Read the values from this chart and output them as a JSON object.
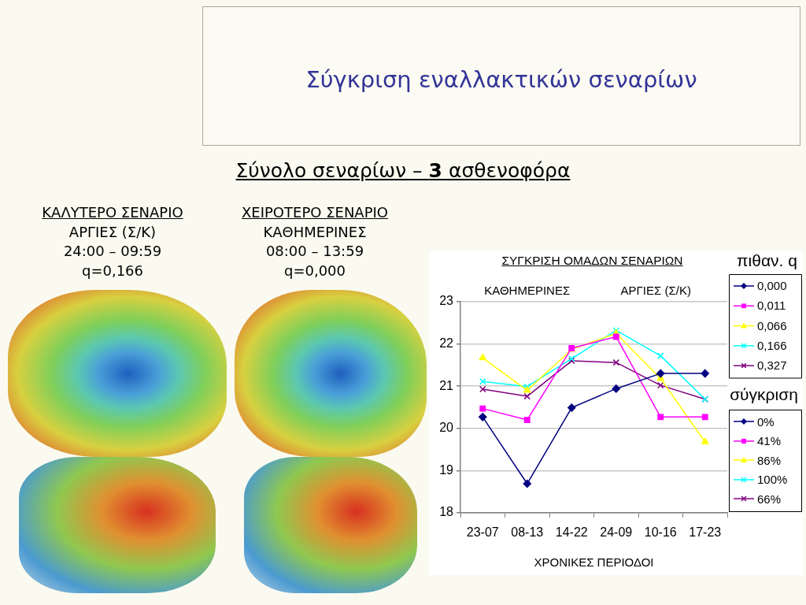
{
  "chart_data": {
    "type": "line",
    "title": "Σύγκριση εναλλακτικών σεναρίων",
    "subtitle": "Σύνολο σεναρίων – 3 ασθενοφόρα",
    "xlabel": "ΧΡΟΝΙΚΕΣ ΠΕΡΙΟΔΟΙ",
    "legend_title": "πιθαν. q",
    "categories": [
      "23-07",
      "08-13",
      "14-22",
      "24-09",
      "10-16",
      "17-23"
    ],
    "series": [
      {
        "name": "0,000",
        "color": "#000080",
        "marker": "diamond",
        "values": [
          20.27,
          18.69,
          20.49,
          20.94,
          21.3,
          21.3
        ]
      },
      {
        "name": "0,011",
        "color": "#ff00ff",
        "marker": "square",
        "values": [
          20.47,
          20.2,
          21.9,
          22.17,
          20.27,
          20.27
        ]
      },
      {
        "name": "0,066",
        "color": "#ffff00",
        "marker": "triangle",
        "values": [
          21.67,
          20.9,
          21.87,
          22.25,
          21.18,
          19.68
        ]
      },
      {
        "name": "0,166",
        "color": "#00ffff",
        "marker": "cross",
        "values": [
          21.11,
          20.99,
          21.65,
          22.32,
          21.72,
          20.69
        ]
      },
      {
        "name": "0,327",
        "color": "#800080",
        "marker": "cross",
        "values": [
          20.93,
          20.76,
          21.6,
          21.56,
          21.02,
          20.69
        ]
      }
    ],
    "ylim": [
      18,
      23
    ],
    "yticks": [
      18,
      19,
      20,
      21,
      22,
      23
    ],
    "grid": "y",
    "legend": "right",
    "line_style": "solid",
    "annotations": [
      "ΣΥΓΚΡΙΣΗ ΟΜΑΔΩΝ ΣΕΝΑΡΙΩΝ",
      "ΚΑΛΥΤΕΡΟ ΣΕΝΑΡΙΟ\nΑΡΓΙΕΣ (Σ/Κ)\n24:00 – 09:59\nq=0,166",
      "ΧΕΙΡΟΤΕΡΟ ΣΕΝΑΡΙΟ\nΚΑΘΗΜΕΡΙΝΕΣ\n08:00 – 13:59\nq=0,000",
      "ΚΑΘΗΜΕΡΙΝΕΣ",
      "ΑΡΓΙΕΣ (Σ/Κ)",
      "σύγκριση",
      "0%",
      "41%",
      "86%",
      "100%",
      "66%"
    ]
  }
}
